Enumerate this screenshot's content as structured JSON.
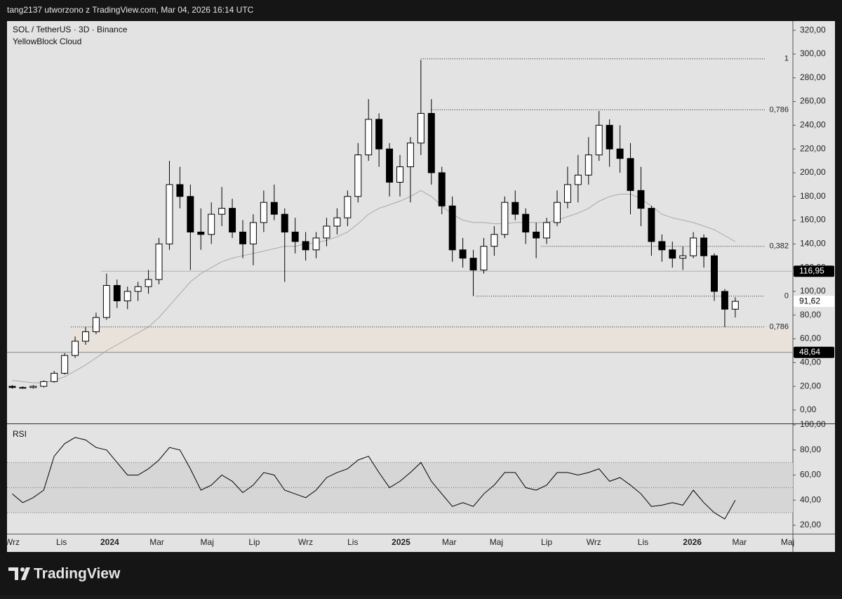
{
  "header": {
    "author": "tang2137 utworzono z TradingView.com, Mar 04, 2026 16:14 UTC",
    "symbol": "SOL / TetherUS · 3D · Binance",
    "indicator": "YellowBlock Cloud"
  },
  "footer": {
    "brand": "TradingView"
  },
  "chart_data": [
    {
      "type": "candlestick",
      "up_color": "#ffffff",
      "down_color": "#000000",
      "xlim": [
        -0.5,
        74.5
      ],
      "ylim": [
        -10.7,
        327.8
      ],
      "xticks": [
        {
          "value": 0,
          "label": "Wrz"
        },
        {
          "value": 4.7,
          "label": "Lis"
        },
        {
          "value": 9.3,
          "label": "2024"
        },
        {
          "value": 13.8,
          "label": "Mar"
        },
        {
          "value": 18.6,
          "label": "Maj"
        },
        {
          "value": 23.1,
          "label": "Lip"
        },
        {
          "value": 28,
          "label": "Wrz"
        },
        {
          "value": 32.5,
          "label": "Lis"
        },
        {
          "value": 37.1,
          "label": "2025"
        },
        {
          "value": 41.7,
          "label": "Mar"
        },
        {
          "value": 46.2,
          "label": "Maj"
        },
        {
          "value": 51,
          "label": "Lip"
        },
        {
          "value": 55.5,
          "label": "Wrz"
        },
        {
          "value": 60.2,
          "label": "Lis"
        },
        {
          "value": 64.9,
          "label": "2026"
        },
        {
          "value": 69.4,
          "label": "Mar"
        },
        {
          "value": 74,
          "label": "Maj"
        }
      ],
      "yticks": [
        {
          "value": 0,
          "label": "0,00"
        },
        {
          "value": 20,
          "label": "20,00"
        },
        {
          "value": 40,
          "label": "40,00"
        },
        {
          "value": 60,
          "label": "60,00"
        },
        {
          "value": 80,
          "label": "80,00"
        },
        {
          "value": 100,
          "label": "100,00"
        },
        {
          "value": 120,
          "label": "120,00"
        },
        {
          "value": 140,
          "label": "140,00"
        },
        {
          "value": 160,
          "label": "160,00"
        },
        {
          "value": 180,
          "label": "180,00"
        },
        {
          "value": 200,
          "label": "200,00"
        },
        {
          "value": 220,
          "label": "220,00"
        },
        {
          "value": 240,
          "label": "240,00"
        },
        {
          "value": 260,
          "label": "260,00"
        },
        {
          "value": 280,
          "label": "280,00"
        },
        {
          "value": 300,
          "label": "300,00"
        },
        {
          "value": 320,
          "label": "320,00"
        }
      ],
      "ohlc": [
        [
          20,
          21,
          18,
          19
        ],
        [
          19,
          20,
          18,
          19
        ],
        [
          19,
          21,
          18,
          20
        ],
        [
          20,
          25,
          19,
          24
        ],
        [
          24,
          33,
          23,
          31
        ],
        [
          31,
          48,
          30,
          46
        ],
        [
          46,
          62,
          44,
          58
        ],
        [
          58,
          70,
          55,
          66
        ],
        [
          66,
          82,
          64,
          78
        ],
        [
          78,
          115,
          76,
          105
        ],
        [
          105,
          110,
          86,
          92
        ],
        [
          92,
          104,
          85,
          100
        ],
        [
          100,
          108,
          92,
          104
        ],
        [
          104,
          118,
          98,
          110
        ],
        [
          110,
          145,
          106,
          140
        ],
        [
          140,
          210,
          135,
          190
        ],
        [
          190,
          205,
          170,
          180
        ],
        [
          180,
          190,
          118,
          150
        ],
        [
          150,
          170,
          135,
          148
        ],
        [
          148,
          175,
          140,
          165
        ],
        [
          165,
          188,
          155,
          170
        ],
        [
          170,
          178,
          145,
          150
        ],
        [
          150,
          160,
          128,
          140
        ],
        [
          140,
          165,
          122,
          158
        ],
        [
          158,
          185,
          150,
          175
        ],
        [
          175,
          190,
          160,
          165
        ],
        [
          165,
          170,
          108,
          150
        ],
        [
          150,
          162,
          132,
          142
        ],
        [
          142,
          150,
          126,
          135
        ],
        [
          135,
          150,
          128,
          145
        ],
        [
          145,
          162,
          138,
          155
        ],
        [
          155,
          170,
          148,
          162
        ],
        [
          162,
          185,
          155,
          180
        ],
        [
          180,
          225,
          175,
          215
        ],
        [
          215,
          262,
          210,
          245
        ],
        [
          245,
          250,
          205,
          220
        ],
        [
          220,
          225,
          180,
          192
        ],
        [
          192,
          215,
          180,
          205
        ],
        [
          205,
          230,
          175,
          225
        ],
        [
          225,
          295,
          215,
          250
        ],
        [
          250,
          262,
          190,
          200
        ],
        [
          200,
          205,
          165,
          172
        ],
        [
          172,
          180,
          125,
          135
        ],
        [
          135,
          145,
          120,
          128
        ],
        [
          128,
          135,
          96,
          118
        ],
        [
          118,
          145,
          115,
          138
        ],
        [
          138,
          155,
          130,
          148
        ],
        [
          148,
          180,
          145,
          175
        ],
        [
          175,
          185,
          160,
          165
        ],
        [
          165,
          170,
          140,
          150
        ],
        [
          150,
          158,
          128,
          145
        ],
        [
          145,
          162,
          140,
          158
        ],
        [
          158,
          185,
          155,
          175
        ],
        [
          175,
          205,
          170,
          190
        ],
        [
          190,
          215,
          175,
          198
        ],
        [
          198,
          230,
          190,
          215
        ],
        [
          215,
          252,
          210,
          240
        ],
        [
          240,
          245,
          205,
          220
        ],
        [
          220,
          240,
          200,
          212
        ],
        [
          212,
          225,
          165,
          185
        ],
        [
          185,
          205,
          155,
          170
        ],
        [
          170,
          172,
          130,
          142
        ],
        [
          142,
          148,
          125,
          135
        ],
        [
          135,
          142,
          120,
          128
        ],
        [
          128,
          138,
          118,
          130
        ],
        [
          130,
          150,
          128,
          145
        ],
        [
          145,
          148,
          120,
          130
        ],
        [
          130,
          132,
          92,
          100
        ],
        [
          100,
          102,
          70,
          85
        ],
        [
          85,
          95,
          78,
          91.62
        ]
      ],
      "ma": {
        "color": "#a8a8a8",
        "values": [
          25,
          24,
          23,
          23,
          25,
          28,
          33,
          38,
          44,
          50,
          55,
          60,
          65,
          70,
          78,
          88,
          98,
          108,
          115,
          120,
          125,
          128,
          130,
          132,
          134,
          136,
          138,
          138,
          140,
          141,
          143,
          146,
          150,
          157,
          165,
          170,
          173,
          176,
          180,
          185,
          180,
          172,
          165,
          160,
          158,
          158,
          157,
          157,
          158,
          158,
          158,
          158,
          160,
          163,
          166,
          170,
          176,
          180,
          182,
          182,
          178,
          172,
          165,
          162,
          160,
          158,
          155,
          152,
          147,
          142
        ]
      },
      "fib_levels": [
        {
          "label": "1",
          "value": 296,
          "from": 39
        },
        {
          "label": "0,786",
          "value": 253,
          "from": 40
        },
        {
          "label": "0,382",
          "value": 138,
          "from": 50.5
        },
        {
          "label": "0",
          "value": 96,
          "from": 44.3
        },
        {
          "label": "0,786",
          "value": 70,
          "from": 5.6
        }
      ],
      "hlines": [
        {
          "value": 116.95,
          "from": 8.5,
          "color": "#b0b0b0"
        },
        {
          "value": 48.64,
          "from": -0.5,
          "color": "#8a8a8a"
        }
      ],
      "zone": {
        "low": 48.64,
        "high": 70,
        "from": 5.6,
        "color": "#e9e2da"
      },
      "price_labels": [
        {
          "value": 116.95,
          "label": "116,95",
          "color": "#000000"
        },
        {
          "value": 91.62,
          "label": "91,62",
          "color": "#ffffff"
        },
        {
          "value": 48.64,
          "label": "48,64",
          "color": "#000000"
        }
      ]
    },
    {
      "type": "line",
      "title": "RSI",
      "color": "#000000",
      "band": [
        30,
        70
      ],
      "midline": 50,
      "xlim": [
        -0.5,
        74.5
      ],
      "ylim": [
        13.3,
        100
      ],
      "yticks": [
        {
          "value": 20,
          "label": "20,00"
        },
        {
          "value": 40,
          "label": "40,00"
        },
        {
          "value": 60,
          "label": "60,00"
        },
        {
          "value": 80,
          "label": "80,00"
        },
        {
          "value": 100,
          "label": "100,00"
        }
      ],
      "values": [
        45,
        38,
        42,
        48,
        75,
        85,
        90,
        88,
        82,
        80,
        70,
        60,
        60,
        65,
        72,
        82,
        80,
        65,
        48,
        52,
        60,
        55,
        46,
        52,
        62,
        60,
        48,
        45,
        42,
        48,
        58,
        62,
        65,
        72,
        75,
        62,
        50,
        55,
        62,
        70,
        55,
        45,
        35,
        38,
        35,
        45,
        52,
        62,
        62,
        50,
        48,
        52,
        62,
        62,
        60,
        62,
        65,
        55,
        58,
        52,
        45,
        35,
        36,
        38,
        36,
        48,
        38,
        30,
        25,
        40
      ]
    }
  ]
}
